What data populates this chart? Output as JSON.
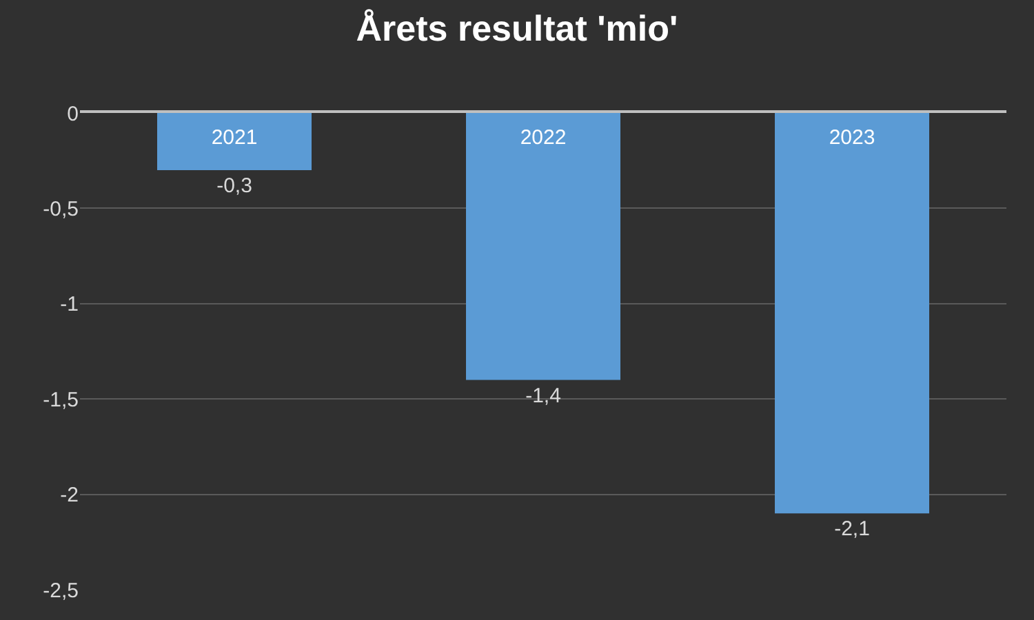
{
  "chart_data": {
    "type": "bar",
    "title": "Årets resultat 'mio'",
    "categories": [
      "2021",
      "2022",
      "2023"
    ],
    "values": [
      -0.3,
      -1.4,
      -2.1
    ],
    "value_labels": [
      "-0,3",
      "-1,4",
      "-2,1"
    ],
    "color": "#5b9bd5",
    "ylim": [
      -2.5,
      0
    ],
    "yticks": [
      {
        "value": 0,
        "label": "0"
      },
      {
        "value": -0.5,
        "label": "-0,5"
      },
      {
        "value": -1,
        "label": "-1"
      },
      {
        "value": -1.5,
        "label": "-1,5"
      },
      {
        "value": -2,
        "label": "-2"
      },
      {
        "value": -2.5,
        "label": "-2,5"
      }
    ],
    "grid": "y"
  }
}
